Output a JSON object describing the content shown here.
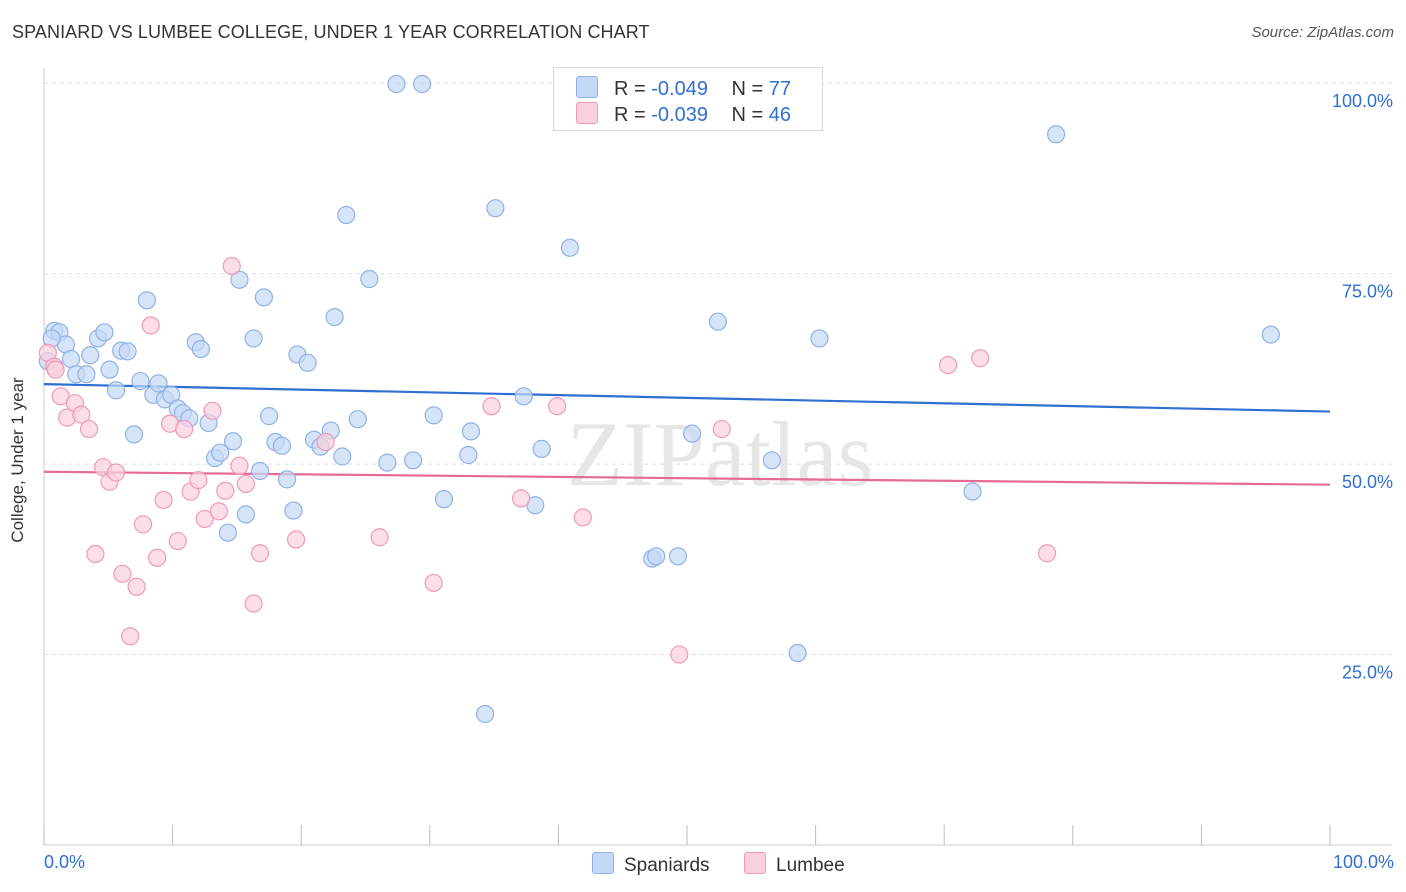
{
  "title": "SPANIARD VS LUMBEE COLLEGE, UNDER 1 YEAR CORRELATION CHART",
  "source": "Source: ZipAtlas.com",
  "watermark": "ZIPatlas",
  "colors": {
    "blue_fill": "#c5d8f5",
    "blue_stroke": "#8fb2e6",
    "blue_line": "#2f6fd1",
    "pink_fill": "#f9d0de",
    "pink_stroke": "#ef9ab8",
    "pink_line": "#e56b94",
    "axis_text": "#2f6fd1",
    "grid": "#dddddd"
  },
  "legend": {
    "rows": [
      {
        "r_label": "R =",
        "r_value": "-0.049",
        "n_label": "N =",
        "n_value": "77"
      },
      {
        "r_label": "R =",
        "r_value": "-0.039",
        "n_label": "N =",
        "n_value": "46"
      }
    ]
  },
  "bottom_legend": {
    "spaniards": "Spaniards",
    "lumbee": "Lumbee"
  },
  "x_ticks": {
    "left": "0.0%",
    "right": "100.0%"
  },
  "chart_data": {
    "type": "scatter",
    "title": "SPANIARD VS LUMBEE COLLEGE, UNDER 1 YEAR CORRELATION CHART",
    "xlabel": "",
    "ylabel": "College, Under 1 year",
    "xlim": [
      0,
      100
    ],
    "ylim": [
      0,
      102
    ],
    "y_ticks": [
      {
        "value": 25,
        "label": "25.0%"
      },
      {
        "value": 50,
        "label": "50.0%"
      },
      {
        "value": 75,
        "label": "75.0%"
      },
      {
        "value": 100,
        "label": "100.0%"
      }
    ],
    "grid": true,
    "legend_position": "top-center",
    "series": [
      {
        "name": "Spaniards",
        "r": -0.049,
        "n": 77,
        "trend": {
          "x": [
            0,
            100
          ],
          "y": [
            60.5,
            56.9
          ]
        },
        "points": [
          [
            0.3,
            63.5
          ],
          [
            0.8,
            67.5
          ],
          [
            1.2,
            67.3
          ],
          [
            1.7,
            65.7
          ],
          [
            2.1,
            63.8
          ],
          [
            2.5,
            61.8
          ],
          [
            3.3,
            61.8
          ],
          [
            3.6,
            64.3
          ],
          [
            4.2,
            66.5
          ],
          [
            4.7,
            67.3
          ],
          [
            5.1,
            62.4
          ],
          [
            5.6,
            59.7
          ],
          [
            6.0,
            64.9
          ],
          [
            6.5,
            64.8
          ],
          [
            7.0,
            53.9
          ],
          [
            7.5,
            60.9
          ],
          [
            8.0,
            71.5
          ],
          [
            8.5,
            59.1
          ],
          [
            8.9,
            60.6
          ],
          [
            9.4,
            58.5
          ],
          [
            9.9,
            59.1
          ],
          [
            10.4,
            57.3
          ],
          [
            10.8,
            56.7
          ],
          [
            11.3,
            56.0
          ],
          [
            11.8,
            66.0
          ],
          [
            12.2,
            65.1
          ],
          [
            12.8,
            55.4
          ],
          [
            13.3,
            50.8
          ],
          [
            13.7,
            51.5
          ],
          [
            14.3,
            41.0
          ],
          [
            14.7,
            53.0
          ],
          [
            15.2,
            74.2
          ],
          [
            15.7,
            43.4
          ],
          [
            16.3,
            66.5
          ],
          [
            16.8,
            49.1
          ],
          [
            17.1,
            71.9
          ],
          [
            17.5,
            56.3
          ],
          [
            18.0,
            52.9
          ],
          [
            18.5,
            52.4
          ],
          [
            18.9,
            48.0
          ],
          [
            19.4,
            43.9
          ],
          [
            19.7,
            64.4
          ],
          [
            20.5,
            63.3
          ],
          [
            21.0,
            53.2
          ],
          [
            21.5,
            52.3
          ],
          [
            22.3,
            54.4
          ],
          [
            22.6,
            69.3
          ],
          [
            23.2,
            51.0
          ],
          [
            23.5,
            82.7
          ],
          [
            24.4,
            55.9
          ],
          [
            25.3,
            74.3
          ],
          [
            26.7,
            50.2
          ],
          [
            28.7,
            50.5
          ],
          [
            30.3,
            56.4
          ],
          [
            31.1,
            45.4
          ],
          [
            33.0,
            51.2
          ],
          [
            33.2,
            54.3
          ],
          [
            34.3,
            17.2
          ],
          [
            35.1,
            83.6
          ],
          [
            37.3,
            58.9
          ],
          [
            38.2,
            44.6
          ],
          [
            38.7,
            52.0
          ],
          [
            40.9,
            78.4
          ],
          [
            47.3,
            37.6
          ],
          [
            47.6,
            37.9
          ],
          [
            49.3,
            37.9
          ],
          [
            50.4,
            54.0
          ],
          [
            52.4,
            68.7
          ],
          [
            56.6,
            50.5
          ],
          [
            58.6,
            25.2
          ],
          [
            60.3,
            66.5
          ],
          [
            27.4,
            99.9
          ],
          [
            29.4,
            99.9
          ],
          [
            72.2,
            46.4
          ],
          [
            78.7,
            93.3
          ],
          [
            95.4,
            67.0
          ],
          [
            0.6,
            66.5
          ]
        ]
      },
      {
        "name": "Lumbee",
        "r": -0.039,
        "n": 46,
        "trend": {
          "x": [
            0,
            100
          ],
          "y": [
            49.0,
            47.3
          ]
        },
        "points": [
          [
            0.3,
            64.6
          ],
          [
            0.8,
            62.8
          ],
          [
            1.3,
            58.9
          ],
          [
            1.8,
            56.1
          ],
          [
            2.4,
            58.0
          ],
          [
            2.9,
            56.5
          ],
          [
            3.5,
            54.6
          ],
          [
            4.0,
            38.2
          ],
          [
            4.6,
            49.6
          ],
          [
            5.1,
            47.7
          ],
          [
            5.6,
            48.9
          ],
          [
            6.1,
            35.6
          ],
          [
            6.7,
            27.4
          ],
          [
            7.2,
            33.9
          ],
          [
            7.7,
            42.1
          ],
          [
            8.3,
            68.2
          ],
          [
            8.8,
            37.7
          ],
          [
            9.3,
            45.3
          ],
          [
            9.8,
            55.3
          ],
          [
            10.4,
            39.9
          ],
          [
            10.9,
            54.6
          ],
          [
            11.4,
            46.4
          ],
          [
            12.0,
            47.9
          ],
          [
            12.5,
            42.8
          ],
          [
            13.1,
            57.0
          ],
          [
            13.6,
            43.8
          ],
          [
            14.1,
            46.5
          ],
          [
            14.6,
            76.0
          ],
          [
            15.2,
            49.8
          ],
          [
            15.7,
            47.4
          ],
          [
            16.3,
            31.7
          ],
          [
            16.8,
            38.3
          ],
          [
            19.6,
            40.1
          ],
          [
            21.9,
            52.9
          ],
          [
            26.1,
            40.4
          ],
          [
            30.3,
            34.4
          ],
          [
            34.8,
            57.6
          ],
          [
            37.1,
            45.5
          ],
          [
            39.9,
            57.6
          ],
          [
            41.9,
            43.0
          ],
          [
            49.4,
            25.0
          ],
          [
            52.7,
            54.6
          ],
          [
            70.3,
            63.0
          ],
          [
            72.8,
            63.9
          ],
          [
            78.0,
            38.3
          ],
          [
            0.9,
            62.4
          ]
        ]
      }
    ]
  }
}
